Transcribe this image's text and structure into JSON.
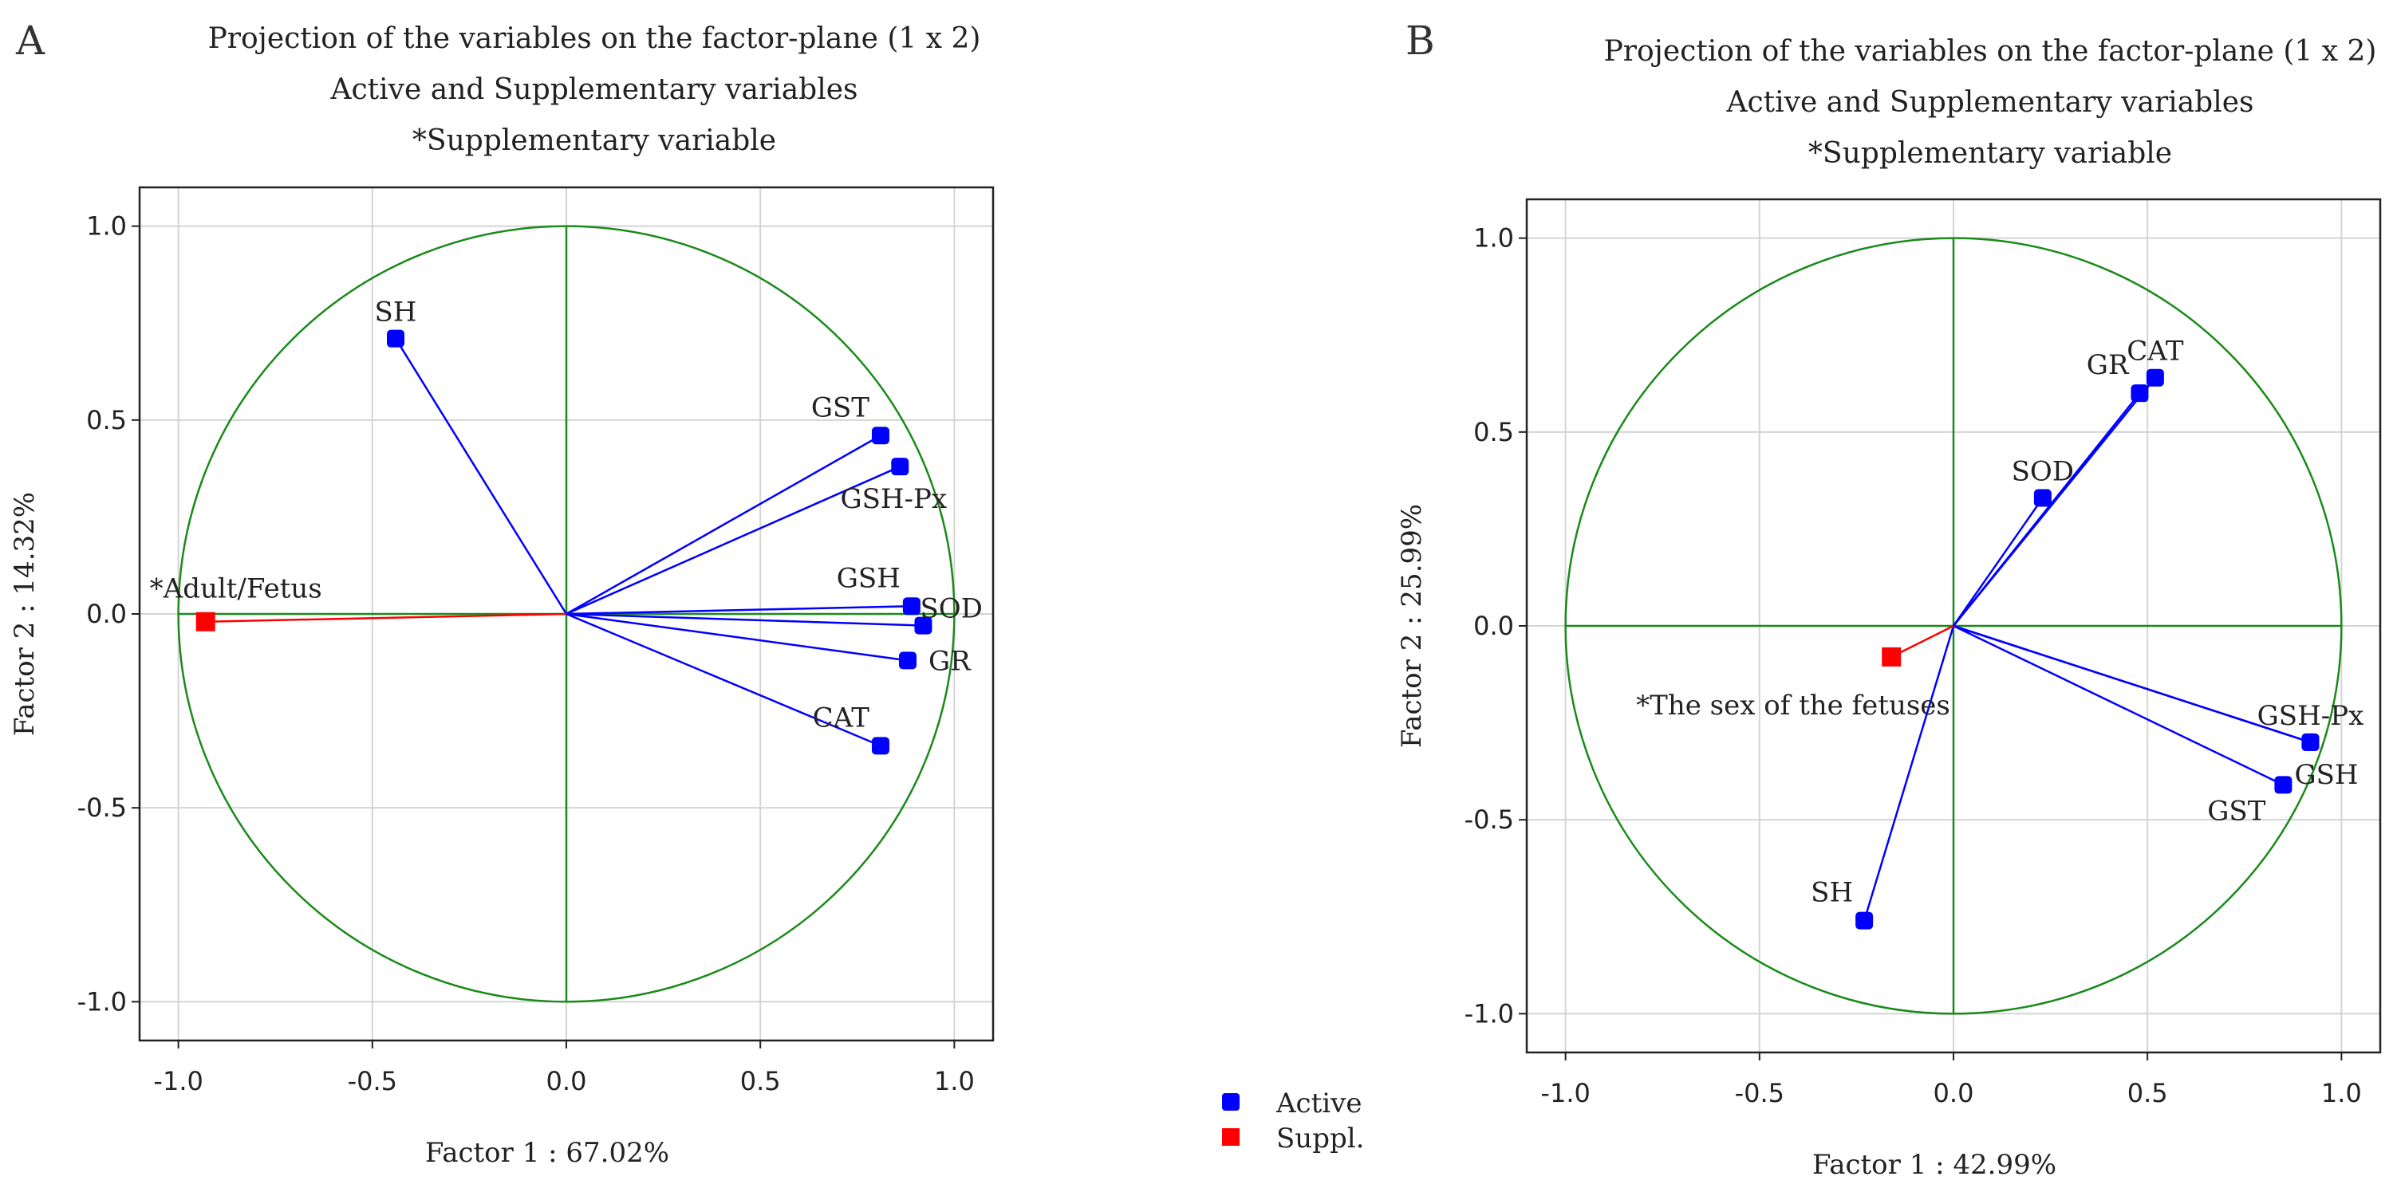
{
  "legend": {
    "items": [
      {
        "label": "Active",
        "color": "#0000ff"
      },
      {
        "label": "Suppl.",
        "color": "#ff0000"
      }
    ]
  },
  "colors": {
    "circle": "#1a8a1a",
    "axes": "#1a8a1a",
    "grid": "#d4d4d4",
    "active": "#0000ff",
    "supplementary": "#ff0000"
  },
  "chart_data": [
    {
      "type": "scatter",
      "panel_letter": "A",
      "title_lines": [
        "Projection of the variables on the factor-plane (1 x 2)",
        "Active and Supplementary variables",
        "*Supplementary variable"
      ],
      "xlabel": "Factor 1 : 67.02%",
      "ylabel": "Factor 2 : 14.32%",
      "xlim": [
        -1.1,
        1.1
      ],
      "ylim": [
        -1.1,
        1.1
      ],
      "xticks": [
        -1.0,
        -0.5,
        0.0,
        0.5,
        1.0
      ],
      "yticks": [
        -1.0,
        -0.5,
        0.0,
        0.5,
        1.0
      ],
      "tick_labels": [
        "-1.0",
        "-0.5",
        "0.0",
        "0.5",
        "1.0"
      ],
      "grid": true,
      "unit_circle": true,
      "points": [
        {
          "label": "SH",
          "x": -0.44,
          "y": 0.71,
          "group": "active",
          "anchor": "above"
        },
        {
          "label": "GST",
          "x": 0.81,
          "y": 0.46,
          "group": "active",
          "anchor": "above-left"
        },
        {
          "label": "GSH-Px",
          "x": 0.86,
          "y": 0.38,
          "group": "active",
          "anchor": "below"
        },
        {
          "label": "GSH",
          "x": 0.89,
          "y": 0.02,
          "group": "active",
          "anchor": "above-left"
        },
        {
          "label": "SOD",
          "x": 0.92,
          "y": -0.03,
          "group": "active",
          "anchor": "right-up"
        },
        {
          "label": "GR",
          "x": 0.88,
          "y": -0.12,
          "group": "active",
          "anchor": "right"
        },
        {
          "label": "CAT",
          "x": 0.81,
          "y": -0.34,
          "group": "active",
          "anchor": "above-left"
        },
        {
          "label": "*Adult/Fetus",
          "x": -0.93,
          "y": -0.02,
          "group": "supplementary",
          "anchor": "above-wide"
        }
      ]
    },
    {
      "type": "scatter",
      "panel_letter": "B",
      "title_lines": [
        "Projection of the variables on the factor-plane (1 x 2)",
        "Active and Supplementary variables",
        "*Supplementary variable"
      ],
      "xlabel": "Factor 1 : 42.99%",
      "ylabel": "Factor 2 : 25.99%",
      "xlim": [
        -1.1,
        1.1
      ],
      "ylim": [
        -1.1,
        1.1
      ],
      "xticks": [
        -1.0,
        -0.5,
        0.0,
        0.5,
        1.0
      ],
      "yticks": [
        -1.0,
        -0.5,
        0.0,
        0.5,
        1.0
      ],
      "tick_labels": [
        "-1.0",
        "-0.5",
        "0.0",
        "0.5",
        "1.0"
      ],
      "grid": true,
      "unit_circle": true,
      "points": [
        {
          "label": "CAT",
          "x": 0.52,
          "y": 0.64,
          "group": "active",
          "anchor": "above"
        },
        {
          "label": "GR",
          "x": 0.48,
          "y": 0.6,
          "group": "active",
          "anchor": "above-left"
        },
        {
          "label": "SOD",
          "x": 0.23,
          "y": 0.33,
          "group": "active",
          "anchor": "above"
        },
        {
          "label": "GSH-Px",
          "x": 0.92,
          "y": -0.3,
          "group": "active",
          "anchor": "above"
        },
        {
          "label": "GSH",
          "x": 0.92,
          "y": -0.3,
          "group": "active",
          "anchor": "right-down"
        },
        {
          "label": "GST",
          "x": 0.85,
          "y": -0.41,
          "group": "active",
          "anchor": "below-left"
        },
        {
          "label": "SH",
          "x": -0.23,
          "y": -0.76,
          "group": "active",
          "anchor": "above-left"
        },
        {
          "label": "*The sex of the fetuses",
          "x": -0.16,
          "y": -0.08,
          "group": "supplementary",
          "anchor": "below-wide"
        }
      ]
    }
  ]
}
